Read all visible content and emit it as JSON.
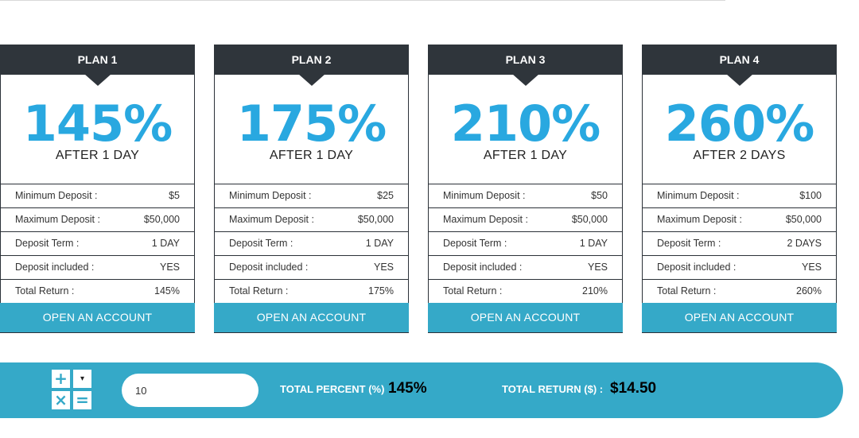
{
  "plans": [
    {
      "title": "PLAN 1",
      "percent": "145%",
      "after": "AFTER 1 DAY",
      "rows": [
        {
          "label": "Minimum Deposit :",
          "value": "$5"
        },
        {
          "label": "Maximum Deposit :",
          "value": "$50,000"
        },
        {
          "label": "Deposit Term :",
          "value": "1 DAY"
        },
        {
          "label": "Deposit included :",
          "value": "YES"
        },
        {
          "label": "Total Return :",
          "value": "145%"
        }
      ],
      "button": "OPEN AN ACCOUNT"
    },
    {
      "title": "PLAN 2",
      "percent": "175%",
      "after": "AFTER 1 DAY",
      "rows": [
        {
          "label": "Minimum Deposit :",
          "value": "$25"
        },
        {
          "label": "Maximum Deposit :",
          "value": "$50,000"
        },
        {
          "label": "Deposit Term :",
          "value": "1 DAY"
        },
        {
          "label": "Deposit included :",
          "value": "YES"
        },
        {
          "label": "Total Return :",
          "value": "175%"
        }
      ],
      "button": "OPEN AN ACCOUNT"
    },
    {
      "title": "PLAN 3",
      "percent": "210%",
      "after": "AFTER 1 DAY",
      "rows": [
        {
          "label": "Minimum Deposit :",
          "value": "$50"
        },
        {
          "label": "Maximum Deposit :",
          "value": "$50,000"
        },
        {
          "label": "Deposit Term :",
          "value": "1 DAY"
        },
        {
          "label": "Deposit included :",
          "value": "YES"
        },
        {
          "label": "Total Return :",
          "value": "210%"
        }
      ],
      "button": "OPEN AN ACCOUNT"
    },
    {
      "title": "PLAN 4",
      "percent": "260%",
      "after": "AFTER 2 DAYS",
      "rows": [
        {
          "label": "Minimum Deposit :",
          "value": "$100"
        },
        {
          "label": "Maximum Deposit :",
          "value": "$50,000"
        },
        {
          "label": "Deposit Term :",
          "value": "2 DAYS"
        },
        {
          "label": "Deposit included :",
          "value": "YES"
        },
        {
          "label": "Total Return :",
          "value": "260%"
        }
      ],
      "button": "OPEN AN ACCOUNT"
    }
  ],
  "calculator": {
    "icon": "calculator-icon",
    "icon_glyphs": [
      "+",
      "▾",
      "×",
      "="
    ],
    "amount_value": "10",
    "total_percent_label": "TOTAL PERCENT (%)",
    "total_percent_value": "145%",
    "total_return_label": "TOTAL RETURN ($) :",
    "total_return_value": "$14.50"
  },
  "colors": {
    "header_dark": "#2f353b",
    "accent_blue": "#29a8e0",
    "button_teal": "#35a9c8",
    "text_dark": "#333333"
  }
}
